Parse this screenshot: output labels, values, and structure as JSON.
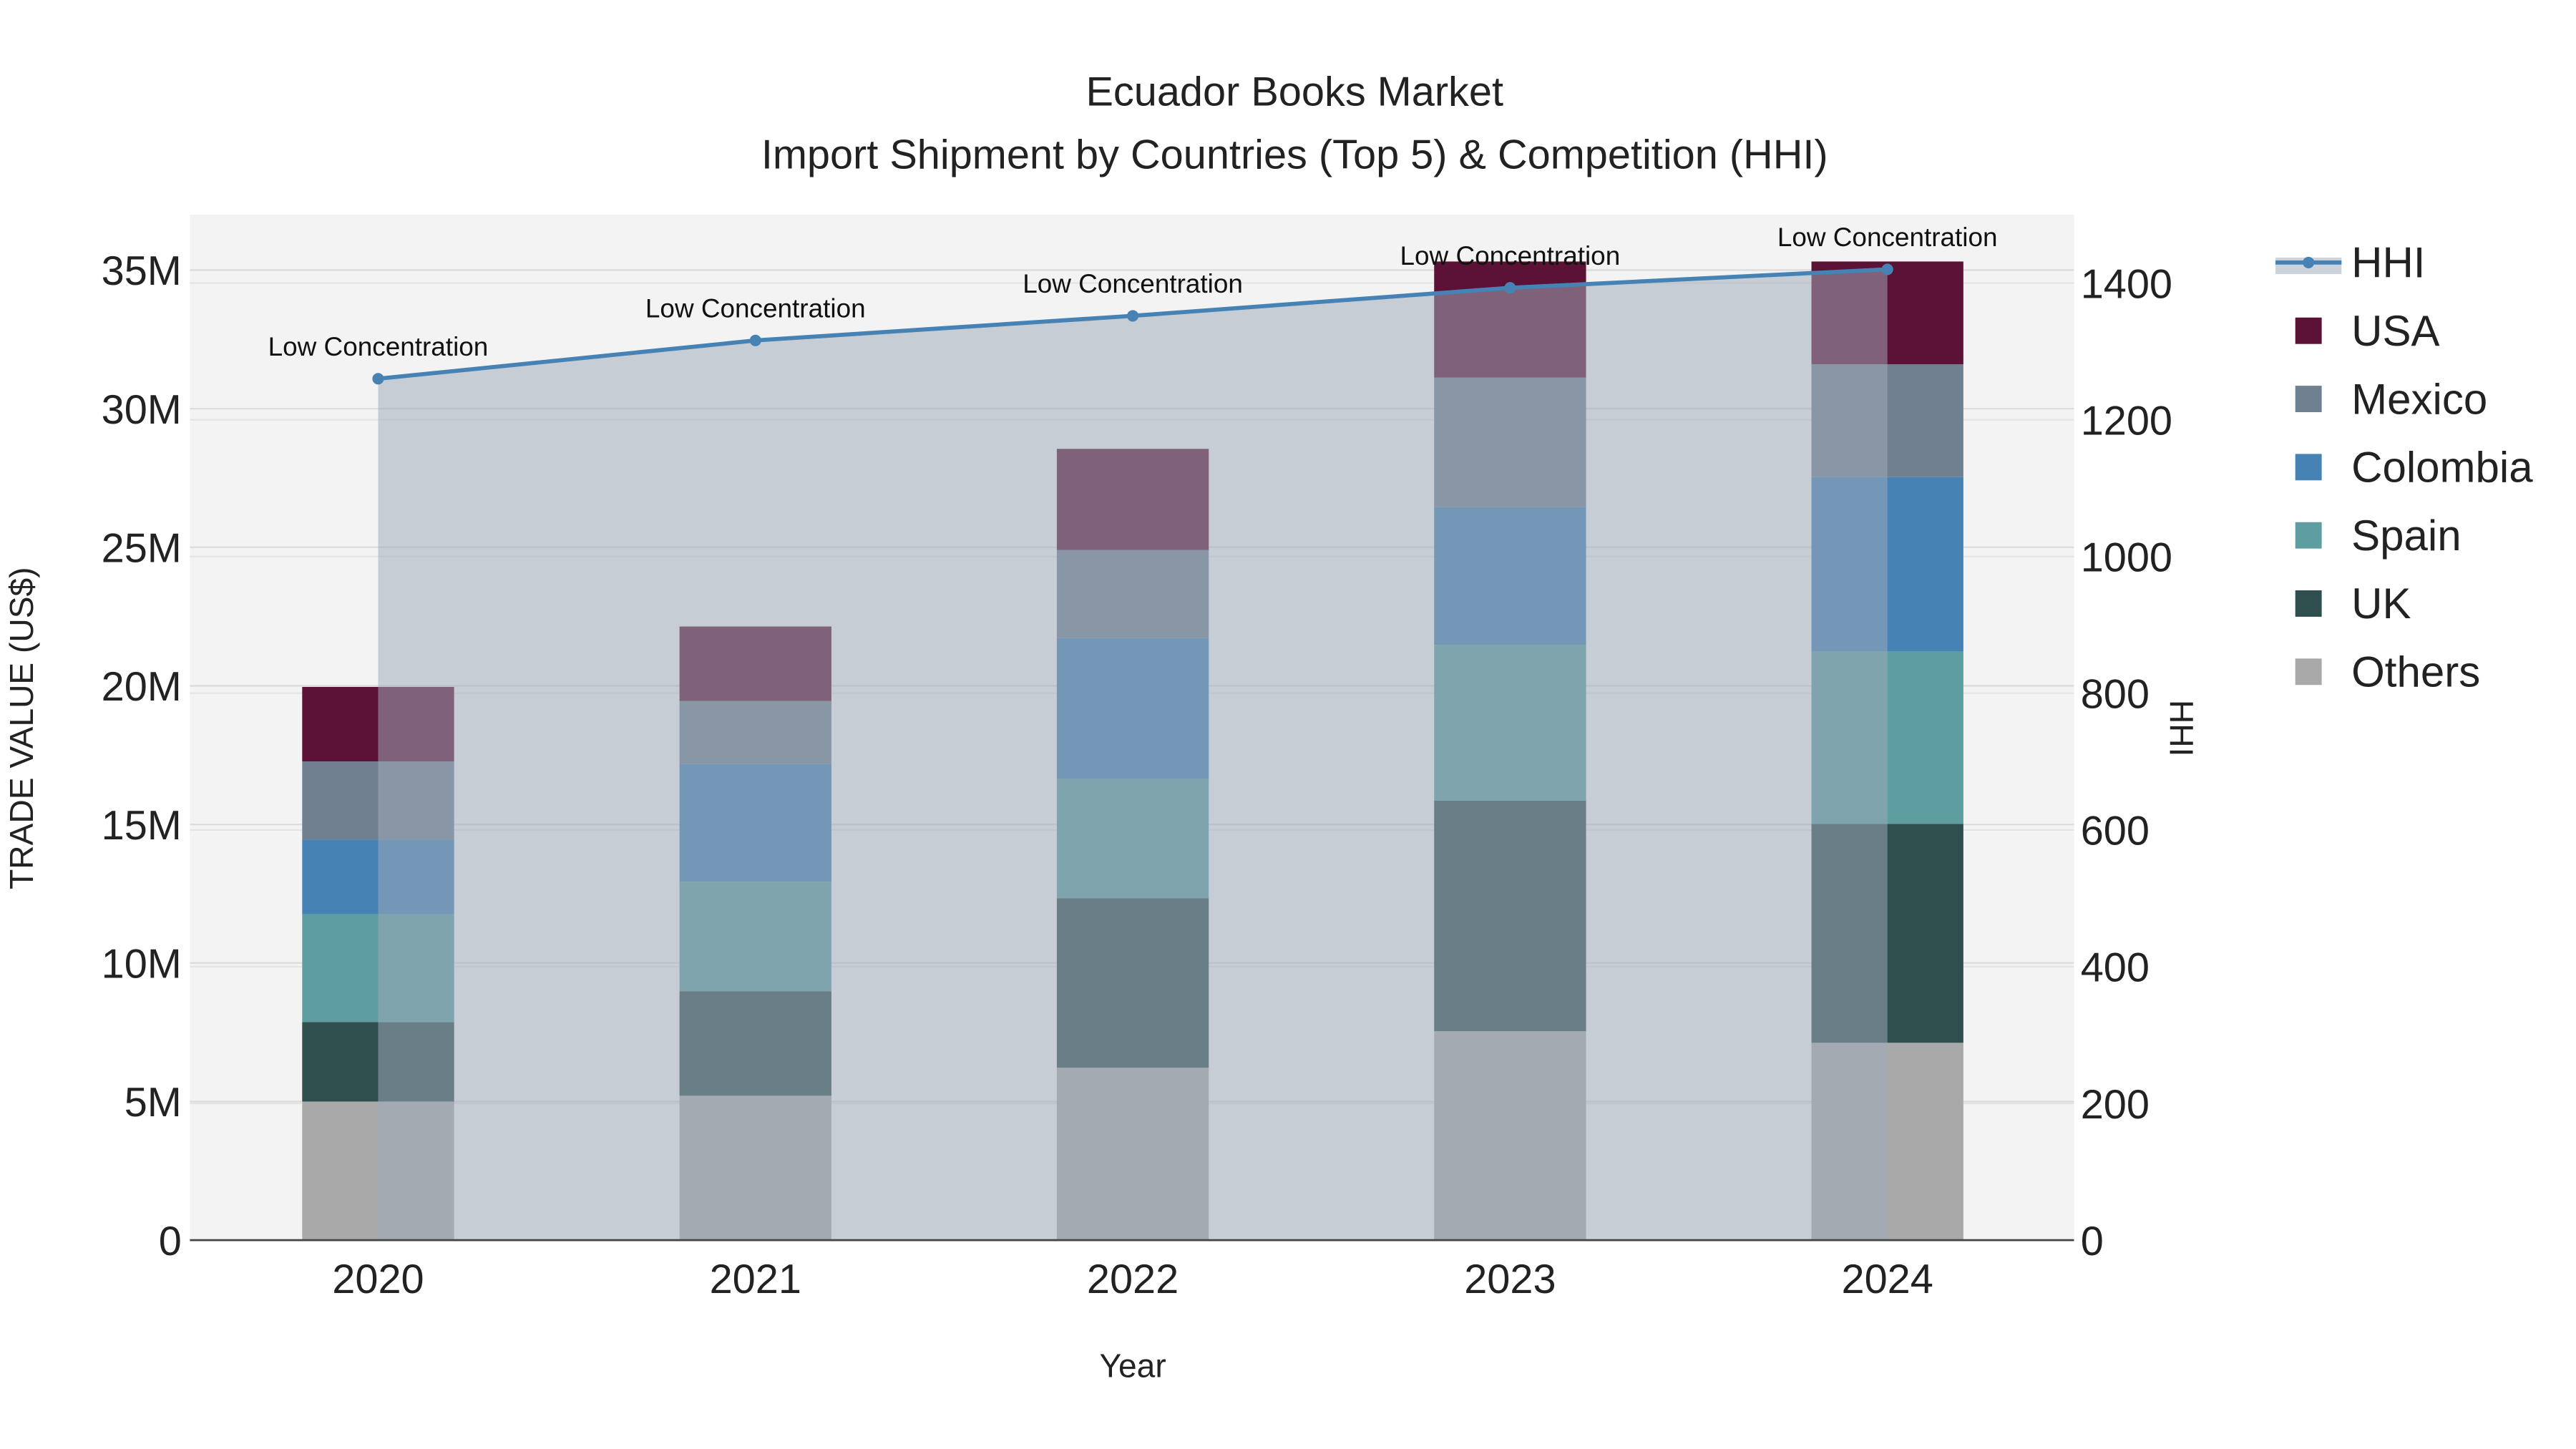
{
  "chart_data": {
    "type": "bar",
    "stacked": true,
    "title": "Ecuador Books Market",
    "subtitle": "Import Shipment by Countries (Top 5) & Competition (HHI)",
    "xlabel": "Year",
    "ylabel": "TRADE VALUE (US$)",
    "y2label": "HHI",
    "categories": [
      "2020",
      "2021",
      "2022",
      "2023",
      "2024"
    ],
    "ylim": [
      0,
      37000000
    ],
    "y_ticks": [
      0,
      5000000,
      10000000,
      15000000,
      20000000,
      25000000,
      30000000,
      35000000
    ],
    "y_tick_labels": [
      "0",
      "5M",
      "10M",
      "15M",
      "20M",
      "25M",
      "30M",
      "35M"
    ],
    "y2lim": [
      0,
      1500
    ],
    "y2_ticks": [
      0,
      200,
      400,
      600,
      800,
      1000,
      1200,
      1400
    ],
    "y2_tick_labels": [
      "0",
      "200",
      "400",
      "600",
      "800",
      "1000",
      "1200",
      "1400"
    ],
    "grid": true,
    "legend_position": "right",
    "series": [
      {
        "name": "Others",
        "color": "#a9a9a9",
        "values": [
          5000000,
          5210000,
          6220000,
          7540000,
          7120000
        ]
      },
      {
        "name": "UK",
        "color": "#2f4f4f",
        "values": [
          2870000,
          3770000,
          6110000,
          8320000,
          7900000
        ]
      },
      {
        "name": "Spain",
        "color": "#5f9ea0",
        "values": [
          3890000,
          3950000,
          4310000,
          5620000,
          6220000
        ]
      },
      {
        "name": "Colombia",
        "color": "#4682b4",
        "values": [
          2690000,
          4250000,
          5080000,
          4970000,
          6290000
        ]
      },
      {
        "name": "Mexico",
        "color": "#708090",
        "values": [
          2820000,
          2270000,
          3180000,
          4670000,
          4070000
        ]
      },
      {
        "name": "USA",
        "color": "#5c1236",
        "values": [
          2690000,
          2690000,
          3650000,
          4190000,
          3710000
        ]
      }
    ],
    "line_series": {
      "name": "HHI",
      "color": "#4682b4",
      "values": [
        1260,
        1316,
        1352,
        1393,
        1420
      ],
      "annotations": [
        "Low Concentration",
        "Low Concentration",
        "Low Concentration",
        "Low Concentration",
        "Low Concentration"
      ]
    },
    "legend_order": [
      "HHI",
      "USA",
      "Mexico",
      "Colombia",
      "Spain",
      "UK",
      "Others"
    ]
  }
}
